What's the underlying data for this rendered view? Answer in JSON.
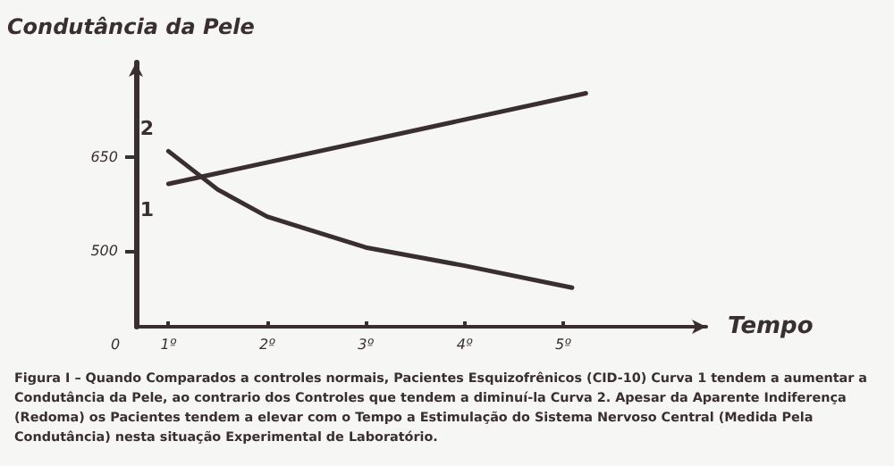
{
  "chart_data": {
    "type": "line",
    "ylabel": "Condutância da Pele",
    "xlabel": "Tempo",
    "xlim": [
      0.67,
      6.45
    ],
    "xticks": [
      {
        "value": 1,
        "label": "1º"
      },
      {
        "value": 2,
        "label": "2º"
      },
      {
        "value": 3,
        "label": "3º"
      },
      {
        "value": 4,
        "label": "4º"
      },
      {
        "value": 5,
        "label": "5º"
      }
    ],
    "ylim": [
      380,
      800
    ],
    "yticks": [
      500,
      650
    ],
    "series": [
      {
        "name": "1",
        "color": "#3a2f30",
        "x": [
          1,
          5.23
        ],
        "values": [
          607,
          751
        ]
      },
      {
        "name": "2",
        "color": "#3a2f30",
        "x": [
          1,
          1.5,
          2,
          3,
          4,
          5.09
        ],
        "values": [
          659,
          598,
          555,
          506,
          477,
          442
        ]
      }
    ],
    "annotations": [
      "0",
      "Figura I – Quando Comparados a controles normais, Pacientes Esquizofrênicos (CID-10) Curva 1 tendem a aumentar a Condutância da Pele, ao contrario dos Controles que tendem a diminuí-la Curva 2. Apesar da Aparente Indiferença (Redoma) os Pacientes tendem a elevar com o Tempo a Estimulação do Sistema Nervoso Central (Medida Pela Condutância) nesta situação Experimental de Laboratório."
    ],
    "grid": false,
    "legend": false,
    "marker": "none",
    "line_style": "solid"
  }
}
